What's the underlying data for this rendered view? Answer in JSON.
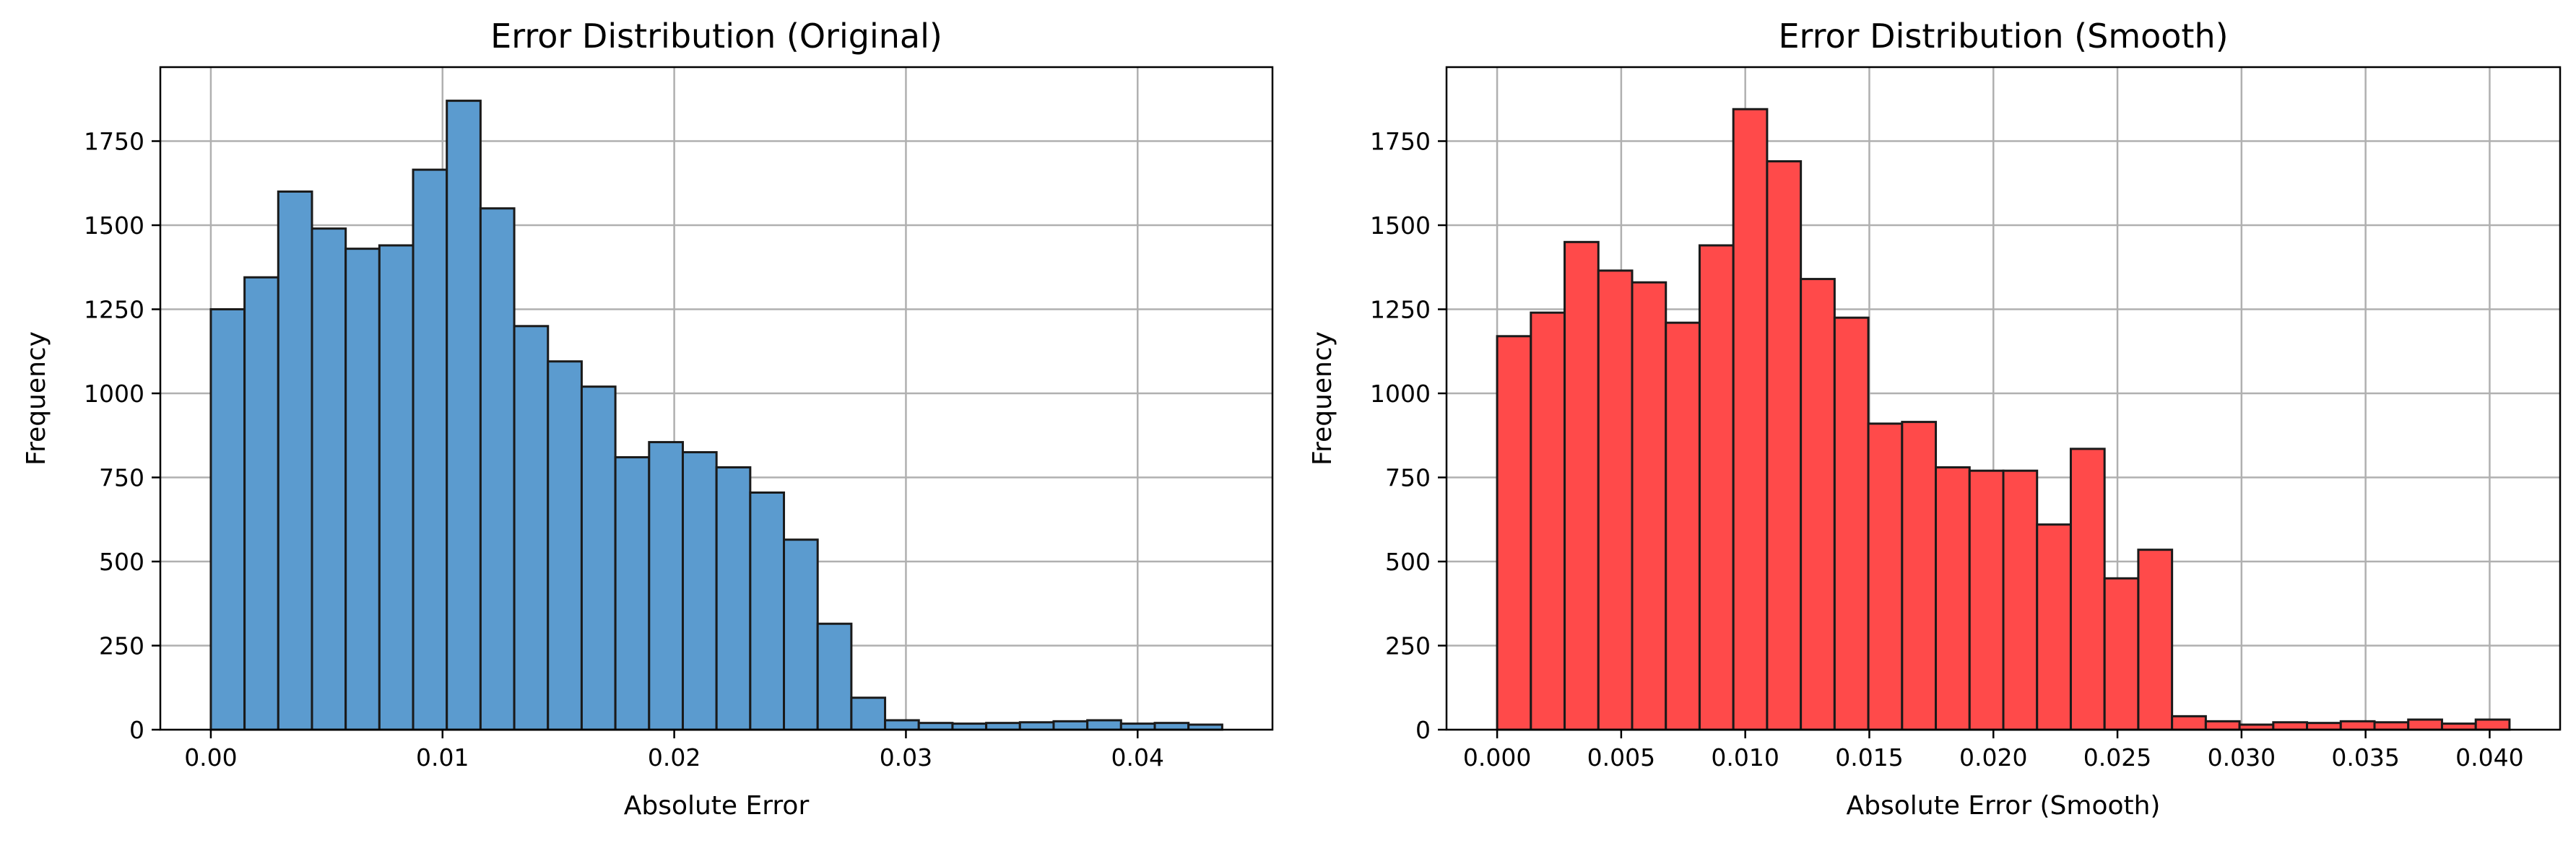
{
  "chart_data": [
    {
      "type": "bar",
      "title": "Error Distribution (Original)",
      "xlabel": "Absolute Error",
      "ylabel": "Frequency",
      "color": "#5b9bcf",
      "edge_color": "#1a1a1a",
      "grid": true,
      "xlim": [
        -0.00218,
        0.04582
      ],
      "ylim": [
        0,
        1970
      ],
      "xticks": [
        0.0,
        0.01,
        0.02,
        0.03,
        0.04
      ],
      "xtick_labels": [
        "0.00",
        "0.01",
        "0.02",
        "0.03",
        "0.04"
      ],
      "yticks": [
        0,
        250,
        500,
        750,
        1000,
        1250,
        1500,
        1750
      ],
      "ytick_labels": [
        "0",
        "250",
        "500",
        "750",
        "1000",
        "1250",
        "1500",
        "1750"
      ],
      "bin_start": 0.0,
      "bin_width": 0.001455,
      "values": [
        1250,
        1345,
        1600,
        1490,
        1430,
        1440,
        1665,
        1870,
        1550,
        1200,
        1095,
        1020,
        810,
        855,
        825,
        780,
        705,
        565,
        315,
        95,
        28,
        20,
        18,
        20,
        22,
        25,
        28,
        18,
        20,
        15
      ]
    },
    {
      "type": "bar",
      "title": "Error Distribution (Smooth)",
      "xlabel": "Absolute Error (Smooth)",
      "ylabel": "Frequency",
      "color": "#ff4a4a",
      "edge_color": "#1a1a1a",
      "grid": true,
      "xlim": [
        -0.00204,
        0.04284
      ],
      "ylim": [
        0,
        1970
      ],
      "xticks": [
        0.0,
        0.005,
        0.01,
        0.015,
        0.02,
        0.025,
        0.03,
        0.035,
        0.04
      ],
      "xtick_labels": [
        "0.000",
        "0.005",
        "0.010",
        "0.015",
        "0.020",
        "0.025",
        "0.030",
        "0.035",
        "0.040"
      ],
      "yticks": [
        0,
        250,
        500,
        750,
        1000,
        1250,
        1500,
        1750
      ],
      "ytick_labels": [
        "0",
        "250",
        "500",
        "750",
        "1000",
        "1250",
        "1500",
        "1750"
      ],
      "bin_start": 0.0,
      "bin_width": 0.00136,
      "values": [
        1170,
        1240,
        1450,
        1365,
        1330,
        1210,
        1440,
        1845,
        1690,
        1340,
        1225,
        910,
        915,
        780,
        770,
        770,
        610,
        835,
        450,
        535,
        40,
        25,
        15,
        22,
        20,
        25,
        22,
        30,
        18,
        30
      ]
    }
  ]
}
